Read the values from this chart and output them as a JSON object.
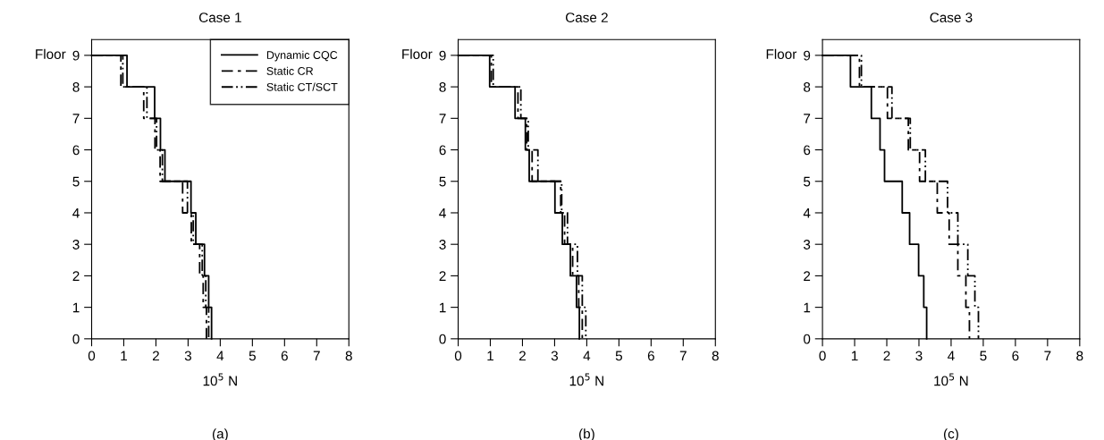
{
  "chart_data": [
    {
      "type": "line",
      "title": "Case 1",
      "xlabel": "10$^{5}$ N",
      "ylabel": "Floor",
      "annotations": [
        "(a)"
      ],
      "xlim": [
        0,
        8
      ],
      "xticks": [
        0,
        1,
        2,
        3,
        4,
        5,
        6,
        7,
        8
      ],
      "ylim": [
        0,
        9.5
      ],
      "yticks": [
        0,
        1,
        2,
        3,
        4,
        5,
        6,
        7,
        8,
        9
      ],
      "legend": "top right",
      "grid": false,
      "series": [
        {
          "name": "Dynamic CQC",
          "color": "#000000",
          "line_style": "solid",
          "x": [
            0,
            1.1,
            1.1,
            1.96,
            1.96,
            2.14,
            2.14,
            2.28,
            2.28,
            3.09,
            3.09,
            3.24,
            3.24,
            3.51,
            3.51,
            3.64,
            3.64,
            3.73,
            3.73
          ],
          "values": [
            9,
            9,
            8,
            8,
            7,
            7,
            6,
            6,
            5,
            5,
            4,
            4,
            3,
            3,
            2,
            2,
            1,
            1,
            0
          ]
        },
        {
          "name": "Static CR",
          "color": "#000000",
          "line_style": "dashed",
          "x": [
            0,
            0.91,
            0.91,
            1.62,
            1.62,
            1.97,
            1.97,
            2.13,
            2.13,
            2.83,
            2.83,
            3.1,
            3.1,
            3.36,
            3.36,
            3.47,
            3.47,
            3.57,
            3.57
          ],
          "values": [
            9,
            9,
            8,
            8,
            7,
            7,
            6,
            6,
            5,
            5,
            4,
            4,
            3,
            3,
            2,
            2,
            1,
            1,
            0
          ]
        },
        {
          "name": "Static CT/SCT",
          "color": "#000000",
          "line_style": "dashdot",
          "x": [
            0,
            0.97,
            0.97,
            1.72,
            1.72,
            2.02,
            2.02,
            2.2,
            2.2,
            2.98,
            2.98,
            3.16,
            3.16,
            3.44,
            3.44,
            3.55,
            3.55,
            3.64,
            3.64
          ],
          "values": [
            9,
            9,
            8,
            8,
            7,
            7,
            6,
            6,
            5,
            5,
            4,
            4,
            3,
            3,
            2,
            2,
            1,
            1,
            0
          ]
        }
      ]
    },
    {
      "type": "line",
      "title": "Case 2",
      "xlabel": "10$^{5}$ N",
      "ylabel": "Floor",
      "annotations": [
        "(b)"
      ],
      "xlim": [
        0,
        8
      ],
      "xticks": [
        0,
        1,
        2,
        3,
        4,
        5,
        6,
        7,
        8
      ],
      "ylim": [
        0,
        9.5
      ],
      "yticks": [
        0,
        1,
        2,
        3,
        4,
        5,
        6,
        7,
        8,
        9
      ],
      "grid": false,
      "series": [
        {
          "color": "#000000",
          "line_style": "solid",
          "x": [
            0,
            0.98,
            0.98,
            1.77,
            1.77,
            2.09,
            2.09,
            2.21,
            2.21,
            3.01,
            3.01,
            3.24,
            3.24,
            3.49,
            3.49,
            3.68,
            3.68,
            3.77,
            3.77
          ],
          "values": [
            9,
            9,
            8,
            8,
            7,
            7,
            6,
            6,
            5,
            5,
            4,
            4,
            3,
            3,
            2,
            2,
            1,
            1,
            0
          ]
        },
        {
          "color": "#000000",
          "line_style": "dashed",
          "x": [
            0,
            1.03,
            1.03,
            1.86,
            1.86,
            2.13,
            2.13,
            2.3,
            2.3,
            3.19,
            3.19,
            3.31,
            3.31,
            3.56,
            3.56,
            3.75,
            3.75,
            3.86,
            3.86
          ],
          "values": [
            9,
            9,
            8,
            8,
            7,
            7,
            6,
            6,
            5,
            5,
            4,
            4,
            3,
            3,
            2,
            2,
            1,
            1,
            0
          ]
        },
        {
          "color": "#000000",
          "line_style": "dashdot",
          "x": [
            0,
            1.09,
            1.09,
            1.95,
            1.95,
            2.18,
            2.18,
            2.48,
            2.48,
            3.22,
            3.22,
            3.4,
            3.4,
            3.71,
            3.71,
            3.86,
            3.86,
            3.97,
            3.97
          ],
          "values": [
            9,
            9,
            8,
            8,
            7,
            7,
            6,
            6,
            5,
            5,
            4,
            4,
            3,
            3,
            2,
            2,
            1,
            1,
            0
          ]
        }
      ]
    },
    {
      "type": "line",
      "title": "Case 3",
      "xlabel": "10$^{5}$ N",
      "ylabel": "Floor",
      "annotations": [
        "(c)"
      ],
      "xlim": [
        0,
        8
      ],
      "xticks": [
        0,
        1,
        2,
        3,
        4,
        5,
        6,
        7,
        8
      ],
      "ylim": [
        0,
        9.5
      ],
      "yticks": [
        0,
        1,
        2,
        3,
        4,
        5,
        6,
        7,
        8,
        9
      ],
      "grid": false,
      "series": [
        {
          "color": "#000000",
          "line_style": "solid",
          "x": [
            0,
            0.87,
            0.87,
            1.52,
            1.52,
            1.79,
            1.79,
            1.93,
            1.93,
            2.48,
            2.48,
            2.71,
            2.71,
            2.99,
            2.99,
            3.15,
            3.15,
            3.24,
            3.24
          ],
          "values": [
            9,
            9,
            8,
            8,
            7,
            7,
            6,
            6,
            5,
            5,
            4,
            4,
            3,
            3,
            2,
            2,
            1,
            1,
            0
          ]
        },
        {
          "color": "#000000",
          "line_style": "dashed",
          "x": [
            0,
            1.15,
            1.15,
            2.02,
            2.02,
            2.67,
            2.67,
            3.02,
            3.02,
            3.57,
            3.57,
            3.94,
            3.94,
            4.21,
            4.21,
            4.46,
            4.46,
            4.57,
            4.57
          ],
          "values": [
            9,
            9,
            8,
            8,
            7,
            7,
            6,
            6,
            5,
            5,
            4,
            4,
            3,
            3,
            2,
            2,
            1,
            1,
            0
          ]
        },
        {
          "color": "#000000",
          "line_style": "dashdot",
          "x": [
            0,
            1.21,
            1.21,
            2.16,
            2.16,
            2.73,
            2.73,
            3.2,
            3.2,
            3.89,
            3.89,
            4.21,
            4.21,
            4.52,
            4.52,
            4.74,
            4.74,
            4.85,
            4.85
          ],
          "values": [
            9,
            9,
            8,
            8,
            7,
            7,
            6,
            6,
            5,
            5,
            4,
            4,
            3,
            3,
            2,
            2,
            1,
            1,
            0
          ]
        }
      ]
    }
  ]
}
